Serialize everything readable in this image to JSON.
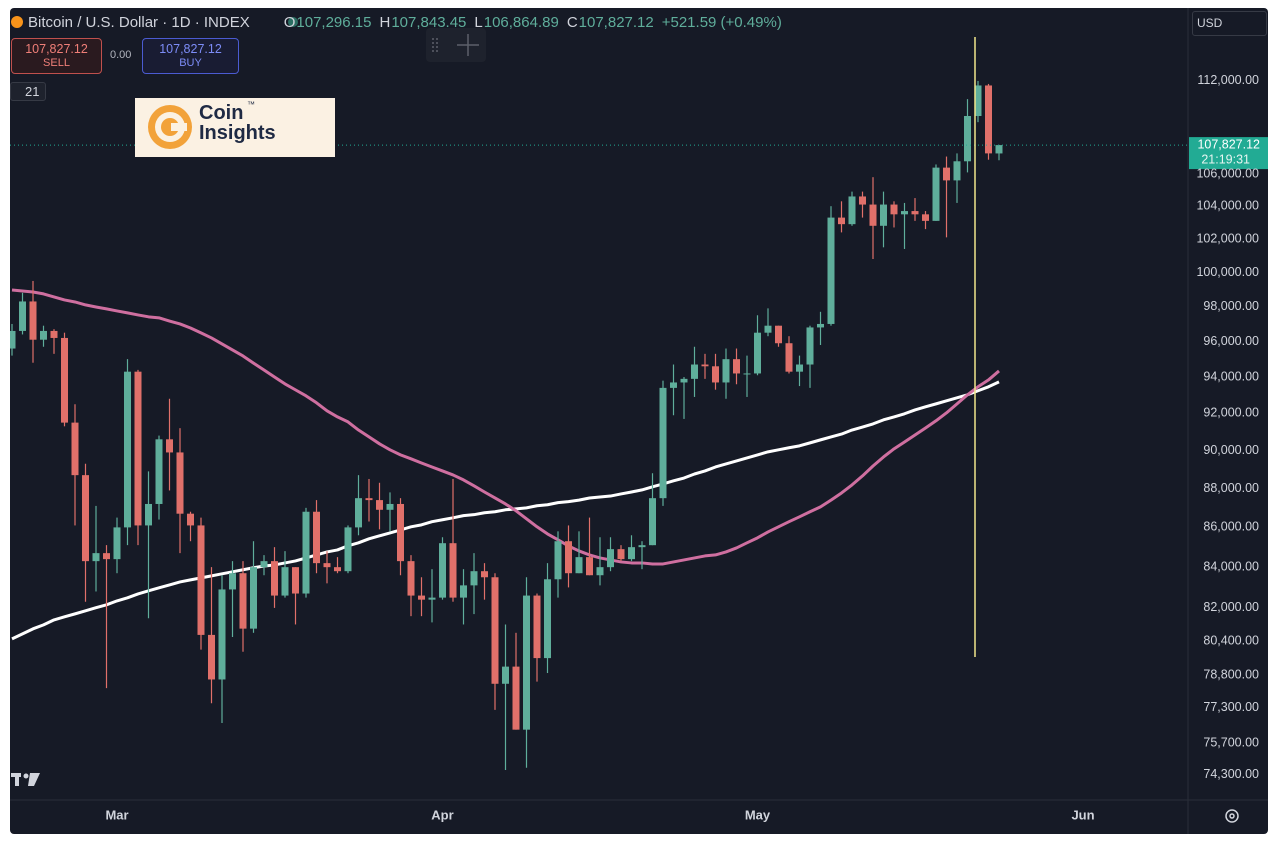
{
  "chart_data": {
    "type": "candlestick",
    "header": {
      "symbol": "Bitcoin / U.S. Dollar · 1D · INDEX",
      "o": "O",
      "open": "107,296.15",
      "h": "H",
      "high": "107,843.45",
      "l": "L",
      "low": "106,864.89",
      "c": "C",
      "change": "+521.59 (+0.49%)"
    },
    "trade": {
      "sell": "SELL",
      "buy": "BUY",
      "spread": "0.00"
    },
    "indicator": "21",
    "currency": "USD",
    "logo": {
      "line1": "Coin",
      "line2": "Insights",
      "tm": "™"
    },
    "last_price": {
      "value": 107827.12,
      "label": "107,827.12"
    },
    "countdown": "21:19:31",
    "log_scale": true,
    "grid": false,
    "up_color": "#5fae9b",
    "down_color": "#e0706a",
    "last_price_color": "#22ab94",
    "ylim": [
      73190,
      116800
    ],
    "yticks": [
      {
        "value": 112000,
        "label": "112,000.00"
      },
      {
        "value": 106000,
        "label": "106,000.00"
      },
      {
        "value": 104000,
        "label": "104,000.00"
      },
      {
        "value": 102000,
        "label": "102,000.00"
      },
      {
        "value": 100000,
        "label": "100,000.00"
      },
      {
        "value": 98000,
        "label": "98,000.00"
      },
      {
        "value": 96000,
        "label": "96,000.00"
      },
      {
        "value": 94000,
        "label": "94,000.00"
      },
      {
        "value": 92000,
        "label": "92,000.00"
      },
      {
        "value": 90000,
        "label": "90,000.00"
      },
      {
        "value": 88000,
        "label": "88,000.00"
      },
      {
        "value": 86000,
        "label": "86,000.00"
      },
      {
        "value": 84000,
        "label": "84,000.00"
      },
      {
        "value": 82000,
        "label": "82,000.00"
      },
      {
        "value": 80400,
        "label": "80,400.00"
      },
      {
        "value": 78800,
        "label": "78,800.00"
      },
      {
        "value": 77300,
        "label": "77,300.00"
      },
      {
        "value": 75700,
        "label": "75,700.00"
      },
      {
        "value": 74300,
        "label": "74,300.00"
      }
    ],
    "categories": [
      null,
      null,
      null,
      null,
      null,
      null,
      null,
      null,
      null,
      null,
      "Mar",
      null,
      null,
      null,
      null,
      null,
      null,
      null,
      null,
      null,
      null,
      null,
      null,
      null,
      null,
      null,
      null,
      null,
      null,
      null,
      null,
      null,
      null,
      null,
      null,
      null,
      null,
      null,
      null,
      null,
      null,
      "Apr",
      null,
      null,
      null,
      null,
      null,
      null,
      null,
      null,
      null,
      null,
      null,
      null,
      null,
      null,
      null,
      null,
      null,
      null,
      null,
      null,
      null,
      null,
      null,
      null,
      null,
      null,
      null,
      null,
      null,
      "May",
      null,
      null,
      null,
      null,
      null,
      null,
      null,
      null,
      null,
      null,
      null,
      null,
      null,
      null,
      null,
      null,
      null,
      null,
      null,
      null,
      null,
      null,
      null,
      null,
      null,
      null,
      null,
      null,
      null,
      null,
      "Jun",
      null,
      null,
      null,
      null,
      null,
      null,
      null,
      null,
      null
    ],
    "open": [
      95600,
      96600,
      98300,
      96100,
      96600,
      96200,
      91500,
      88700,
      84300,
      84700,
      84400,
      86000,
      94300,
      86100,
      87200,
      90600,
      89900,
      86700,
      86100,
      80700,
      78600,
      82900,
      83700,
      81000,
      84000,
      84300,
      82600,
      84000,
      82700,
      86800,
      84200,
      84000,
      83800,
      86000,
      87500,
      87400,
      86900,
      87200,
      84300,
      82600,
      82400,
      82500,
      85200,
      82500,
      83100,
      83800,
      83500,
      78400,
      79200,
      76300,
      82600,
      79600,
      83400,
      85300,
      83700,
      84500,
      83600,
      84000,
      84900,
      84400,
      85000,
      85100,
      87500,
      93400,
      93700,
      93900,
      94700,
      94600,
      93700,
      95000,
      94200,
      94200,
      96500,
      96900,
      95900,
      94300,
      94700,
      96800,
      97000,
      103300,
      102900,
      104600,
      104100,
      102800,
      104100,
      103500,
      103700,
      103500,
      103100,
      106400,
      105600,
      106800,
      109700,
      111700,
      107296.15,
      null,
      null,
      null,
      null,
      null,
      null,
      null,
      null,
      null,
      null,
      null,
      null,
      null,
      null,
      null,
      null,
      null
    ],
    "high": [
      97000,
      98800,
      99500,
      96900,
      96700,
      96500,
      92500,
      89300,
      87100,
      85100,
      86500,
      95000,
      94400,
      88900,
      90800,
      92800,
      91200,
      86800,
      86500,
      84000,
      83600,
      84300,
      84300,
      85300,
      84600,
      85000,
      84800,
      84000,
      87000,
      87400,
      84800,
      84500,
      86100,
      88700,
      88500,
      88300,
      87800,
      87500,
      84600,
      83500,
      83900,
      85500,
      88500,
      83900,
      84700,
      84200,
      83700,
      81200,
      80800,
      83500,
      82700,
      84200,
      85800,
      86100,
      85800,
      86500,
      85500,
      85500,
      85100,
      85600,
      85300,
      88800,
      93800,
      94700,
      94000,
      95700,
      95300,
      95300,
      95600,
      95600,
      95200,
      97500,
      97900,
      96900,
      96300,
      95200,
      96900,
      97700,
      104000,
      104300,
      104900,
      104900,
      105800,
      104900,
      104300,
      104200,
      104500,
      103700,
      106600,
      107100,
      107300,
      110800,
      112000,
      111800,
      107843.45,
      null,
      null,
      null,
      null,
      null,
      null,
      null,
      null,
      null,
      null,
      null,
      null,
      null,
      null,
      null,
      null,
      null
    ],
    "low": [
      95200,
      96400,
      94800,
      95700,
      95300,
      91300,
      86100,
      82300,
      82800,
      78200,
      83700,
      85100,
      85100,
      81500,
      86400,
      87900,
      84700,
      85300,
      80000,
      77500,
      76600,
      80600,
      79900,
      80800,
      83600,
      82000,
      82500,
      81200,
      82500,
      83700,
      83200,
      83700,
      83700,
      85600,
      86300,
      85900,
      85800,
      83600,
      81600,
      81600,
      81300,
      82400,
      82300,
      81200,
      81700,
      82400,
      77200,
      74500,
      76300,
      74600,
      78500,
      78900,
      82500,
      83000,
      83700,
      83600,
      83100,
      83800,
      84300,
      84300,
      83900,
      85100,
      87100,
      91900,
      91700,
      92900,
      93900,
      93300,
      92800,
      93600,
      92900,
      94100,
      96300,
      95700,
      94200,
      93500,
      93400,
      95800,
      96900,
      102400,
      102800,
      103300,
      100800,
      101500,
      102700,
      101400,
      103100,
      102600,
      103100,
      102100,
      104200,
      106100,
      109300,
      106900,
      106864.89,
      null,
      null,
      null,
      null,
      null,
      null,
      null,
      null,
      null,
      null,
      null,
      null,
      null,
      null,
      null,
      null,
      null
    ],
    "close": [
      96600,
      98300,
      96100,
      96600,
      96200,
      91500,
      88700,
      84300,
      84700,
      84400,
      86000,
      94300,
      86100,
      87200,
      90600,
      89900,
      86700,
      86100,
      80700,
      78600,
      82900,
      83700,
      81000,
      84000,
      84300,
      82600,
      84000,
      82700,
      86800,
      84200,
      84000,
      83800,
      86000,
      87500,
      87400,
      86900,
      87200,
      84300,
      82600,
      82400,
      82500,
      85200,
      82500,
      83100,
      83800,
      83500,
      78400,
      79200,
      76300,
      82600,
      79600,
      83400,
      85300,
      83700,
      84500,
      83600,
      84000,
      84900,
      84400,
      85000,
      85100,
      87500,
      93400,
      93700,
      93900,
      94700,
      94600,
      93700,
      95000,
      94200,
      94200,
      96500,
      96900,
      95900,
      94300,
      94700,
      96800,
      97000,
      103300,
      102900,
      104600,
      104100,
      102800,
      104100,
      103500,
      103700,
      103500,
      103100,
      106400,
      105600,
      106800,
      109700,
      111700,
      107300,
      107827.12,
      null,
      null,
      null,
      null,
      null,
      null,
      null,
      null,
      null,
      null,
      null,
      null,
      null,
      null,
      null,
      null,
      null
    ],
    "moving_averages": [
      {
        "color": "#ffffff",
        "values": [
          80510,
          80750,
          80990,
          81180,
          81420,
          81570,
          81710,
          81860,
          82010,
          82150,
          82340,
          82490,
          82680,
          82830,
          82980,
          83120,
          83270,
          83370,
          83470,
          83570,
          83670,
          83770,
          83870,
          83970,
          84060,
          84110,
          84210,
          84310,
          84460,
          84610,
          84760,
          84860,
          85070,
          85220,
          85420,
          85570,
          85720,
          85870,
          86030,
          86130,
          86290,
          86390,
          86490,
          86600,
          86650,
          86750,
          86800,
          86900,
          86950,
          87000,
          87110,
          87160,
          87270,
          87320,
          87400,
          87510,
          87560,
          87610,
          87720,
          87820,
          87930,
          88090,
          88240,
          88400,
          88550,
          88760,
          88920,
          89130,
          89290,
          89450,
          89610,
          89770,
          89930,
          90040,
          90150,
          90250,
          90410,
          90570,
          90730,
          90880,
          91100,
          91260,
          91430,
          91650,
          91810,
          91980,
          92190,
          92360,
          92520,
          92690,
          92850,
          93020,
          93240,
          93460,
          93730,
          null,
          null,
          null,
          null,
          null,
          null,
          null,
          null,
          null,
          null,
          null,
          null,
          null,
          null,
          null,
          null,
          null
        ]
      },
      {
        "color": "#cf6fa0",
        "values": [
          98970,
          98910,
          98850,
          98740,
          98560,
          98390,
          98270,
          98100,
          97980,
          97870,
          97750,
          97640,
          97520,
          97410,
          97350,
          97170,
          97000,
          96770,
          96490,
          96200,
          95860,
          95520,
          95180,
          94780,
          94390,
          94000,
          93620,
          93290,
          92960,
          92580,
          92140,
          91810,
          91540,
          91100,
          90730,
          90360,
          90040,
          89770,
          89560,
          89340,
          89130,
          88920,
          88710,
          88450,
          88140,
          87820,
          87510,
          87200,
          86850,
          86440,
          86030,
          85670,
          85370,
          85060,
          84810,
          84610,
          84460,
          84360,
          84260,
          84210,
          84210,
          84160,
          84160,
          84260,
          84360,
          84460,
          84560,
          84610,
          84760,
          84960,
          85220,
          85470,
          85770,
          86030,
          86290,
          86540,
          86800,
          87050,
          87400,
          87770,
          88190,
          88660,
          89180,
          89660,
          90090,
          90460,
          90830,
          91210,
          91600,
          92030,
          92520,
          93020,
          93460,
          93840,
          94340,
          null,
          null,
          null,
          null,
          null,
          null,
          null,
          null,
          null,
          null,
          null,
          null,
          null,
          null,
          null,
          null,
          null
        ]
      }
    ]
  }
}
